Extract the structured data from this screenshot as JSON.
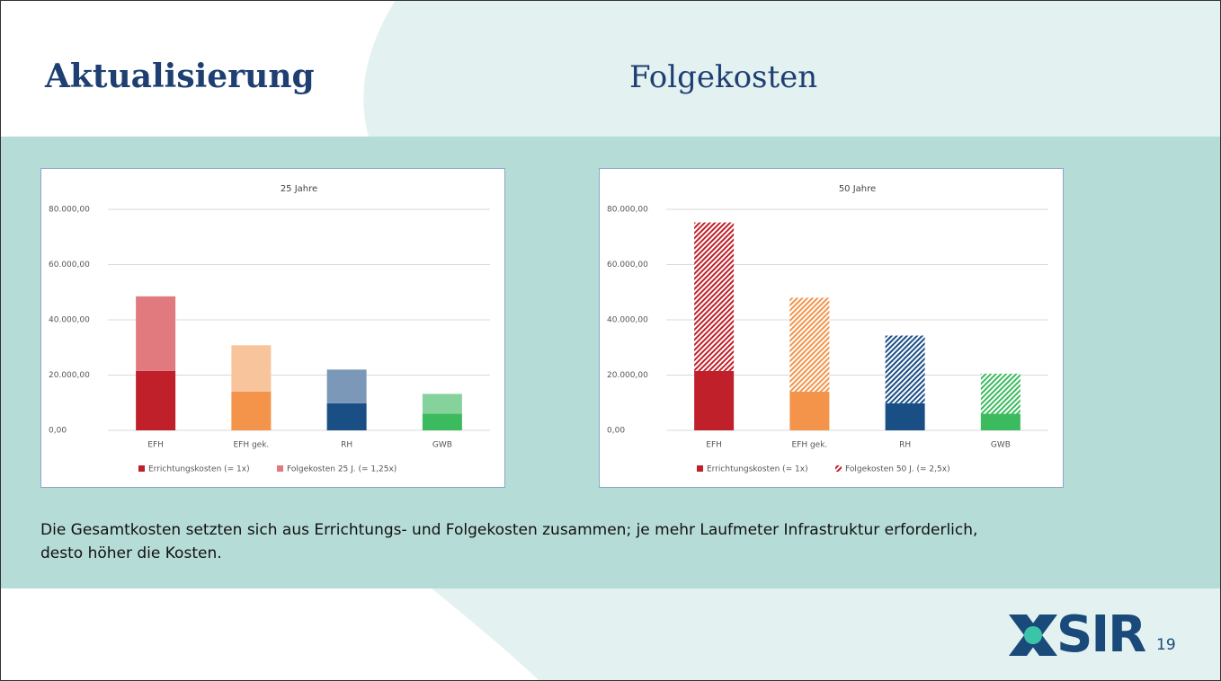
{
  "header": {
    "title": "Aktualisierung",
    "subtitle": "Folgekosten"
  },
  "caption": [
    "Die Gesamtkosten setzten sich aus Errichtungs- und Folgekosten zusammen; je mehr Laufmeter Infrastruktur erforderlich,",
    "desto höher die Kosten."
  ],
  "logo": "SIR",
  "page_number": "19",
  "chart_data": [
    {
      "type": "stacked_bar",
      "title": "25 Jahre",
      "categories": [
        "EFH",
        "EFH gek.",
        "RH",
        "GWB"
      ],
      "series": [
        {
          "name": "Errichtungskosten (= 1x)",
          "color": "#c0202a",
          "colors": [
            "#c0202a",
            "#f4944a",
            "#1a4f86",
            "#3cba5e"
          ],
          "values": [
            21500,
            14000,
            9800,
            6000
          ]
        },
        {
          "name": "Folgekosten 25 J. (= 1,25x)",
          "color": "#e07a7e",
          "colors": [
            "#e07a7e",
            "#f8c49c",
            "#7c98b8",
            "#86d29c"
          ],
          "values": [
            27000,
            16800,
            12200,
            7200
          ]
        }
      ],
      "ylim": [
        0,
        80000
      ],
      "yticks": [
        {
          "value": 0,
          "label": "0,00"
        },
        {
          "value": 20000,
          "label": "20.000,00"
        },
        {
          "value": 40000,
          "label": "40.000,00"
        },
        {
          "value": 60000,
          "label": "60.000,00"
        },
        {
          "value": 80000,
          "label": "80.000,00"
        }
      ],
      "grid": true
    },
    {
      "type": "stacked_bar",
      "title": "50 Jahre",
      "categories": [
        "EFH",
        "EFH gek.",
        "RH",
        "GWB"
      ],
      "series": [
        {
          "name": "Errichtungskosten (= 1x)",
          "color": "#c0202a",
          "colors": [
            "#c0202a",
            "#f4944a",
            "#1a4f86",
            "#3cba5e"
          ],
          "values": [
            21500,
            14000,
            9800,
            6000
          ]
        },
        {
          "name": "Folgekosten 50 J. (= 2,5x)",
          "color": "#c0202a",
          "colors": [
            "#c0202a",
            "#f4944a",
            "#1a4f86",
            "#3cba5e"
          ],
          "pattern": "hatch",
          "values": [
            53750,
            34000,
            24500,
            14500
          ]
        }
      ],
      "ylim": [
        0,
        80000
      ],
      "yticks": [
        {
          "value": 0,
          "label": "0,00"
        },
        {
          "value": 20000,
          "label": "20.000,00"
        },
        {
          "value": 40000,
          "label": "40.000,00"
        },
        {
          "value": 60000,
          "label": "60.000,00"
        },
        {
          "value": 80000,
          "label": "80.000,00"
        }
      ],
      "grid": true
    }
  ]
}
